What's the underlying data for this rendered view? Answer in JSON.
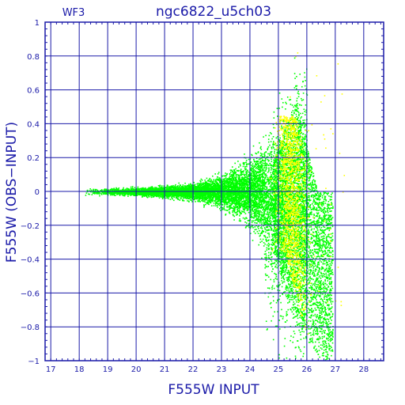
{
  "colors": {
    "axis": "#1a1aa8",
    "grid": "#1a1aa8",
    "main_points": "#00ff00",
    "faint_points": "#ffff00"
  },
  "chart_data": {
    "type": "scatter",
    "title": "ngc6822_u5ch03",
    "chip": "WF3",
    "xlabel": "F555W  INPUT",
    "ylabel": "F555W  (OBS−INPUT)",
    "xlim": [
      16.8,
      28.7
    ],
    "ylim": [
      -1,
      1
    ],
    "grid": true,
    "x_ticks": [
      17,
      18,
      19,
      20,
      21,
      22,
      23,
      24,
      25,
      26,
      27,
      28
    ],
    "y_ticks": [
      -1,
      -0.8,
      -0.6,
      -0.4,
      -0.2,
      0,
      0.2,
      0.4,
      0.6,
      0.8,
      1
    ],
    "x_tick_labels": [
      "17",
      "18",
      "19",
      "20",
      "21",
      "22",
      "23",
      "24",
      "25",
      "26",
      "27",
      "28"
    ],
    "y_tick_labels": [
      "−1",
      "−0.8",
      "−0.6",
      "−0.4",
      "−0.2",
      "0",
      "0.2",
      "0.4",
      "0.6",
      "0.8",
      "1"
    ],
    "series": [
      {
        "color": "#00ff00",
        "distribution": {
          "x_range": [
            18.2,
            26.9
          ],
          "center_y": 0.0,
          "spread_at": [
            [
              18.2,
              0.012
            ],
            [
              20.0,
              0.015
            ],
            [
              22.0,
              0.03
            ],
            [
              23.0,
              0.06
            ],
            [
              24.0,
              0.12
            ],
            [
              25.0,
              0.28
            ],
            [
              25.5,
              0.4
            ],
            [
              26.0,
              0.45
            ],
            [
              26.5,
              0.35
            ],
            [
              26.9,
              0.2
            ]
          ],
          "tail_low": "negative offsets increase to about -1 between 25 and 26.9"
        }
      },
      {
        "color": "#ffff00",
        "distribution": {
          "x_range": [
            24.8,
            27.2
          ],
          "center_y": 0.0,
          "note": "faint stars concentrated near 25.2-26.3, spread +0.7 to -1"
        }
      }
    ]
  }
}
